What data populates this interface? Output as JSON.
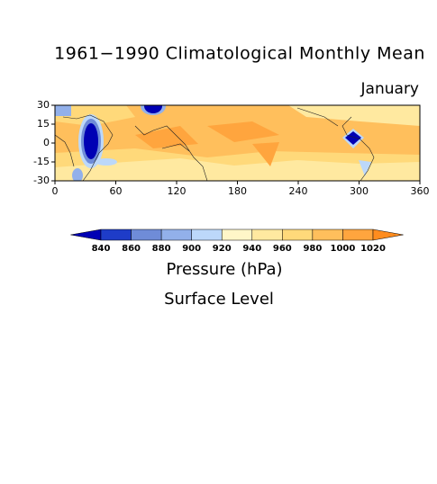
{
  "title": "1961−1990 Climatological Monthly Mean",
  "subtitle": "January",
  "map": {
    "xlim": [
      0,
      360
    ],
    "ylim": [
      -30,
      30
    ],
    "xticks": [
      0,
      60,
      120,
      180,
      240,
      300,
      360
    ],
    "yticks": [
      -30,
      -15,
      0,
      15,
      30
    ]
  },
  "colorbar": {
    "levels": [
      840,
      860,
      880,
      900,
      920,
      940,
      960,
      980,
      1000,
      1020
    ],
    "colors": [
      "#0000b4",
      "#1e3cc8",
      "#6f8cd8",
      "#92b0ea",
      "#bcd8fa",
      "#fff6c8",
      "#ffe9a0",
      "#ffd97a",
      "#ffbf5c",
      "#ffa53e",
      "#ff8c1e"
    ]
  },
  "variable": "Pressure (hPa)",
  "level": "Surface Level"
}
